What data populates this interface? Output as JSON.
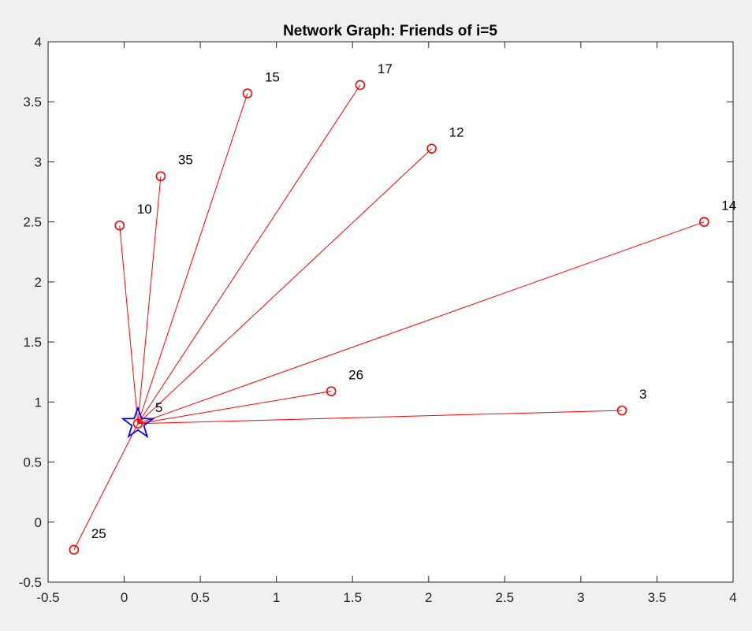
{
  "chart_data": {
    "type": "network-graph",
    "title": "Network Graph: Friends of i=5",
    "xlim": [
      -0.5,
      4
    ],
    "ylim": [
      -0.5,
      4
    ],
    "xticks": [
      -0.5,
      0,
      0.5,
      1,
      1.5,
      2,
      2.5,
      3,
      3.5,
      4
    ],
    "yticks": [
      -0.5,
      0,
      0.5,
      1,
      1.5,
      2,
      2.5,
      3,
      3.5,
      4
    ],
    "xtick_labels": [
      "-0.5",
      "0",
      "0.5",
      "1",
      "1.5",
      "2",
      "2.5",
      "3",
      "3.5",
      "4"
    ],
    "ytick_labels": [
      "-0.5",
      "0",
      "0.5",
      "1",
      "1.5",
      "2",
      "2.5",
      "3",
      "3.5",
      "4"
    ],
    "center": {
      "label": "5",
      "x": 0.09,
      "y": 0.82,
      "marker": "star",
      "color": "#0000ff"
    },
    "friends": [
      {
        "label": "3",
        "x": 3.27,
        "y": 0.93
      },
      {
        "label": "10",
        "x": -0.03,
        "y": 2.47
      },
      {
        "label": "12",
        "x": 2.02,
        "y": 3.11
      },
      {
        "label": "14",
        "x": 3.81,
        "y": 2.5
      },
      {
        "label": "15",
        "x": 0.81,
        "y": 3.57
      },
      {
        "label": "17",
        "x": 1.55,
        "y": 3.64
      },
      {
        "label": "25",
        "x": -0.33,
        "y": -0.23
      },
      {
        "label": "26",
        "x": 1.36,
        "y": 1.09
      },
      {
        "label": "35",
        "x": 0.24,
        "y": 2.88
      }
    ],
    "edge_color": "#ff0000",
    "friend_marker_color": "#ff0000",
    "grid": false
  }
}
